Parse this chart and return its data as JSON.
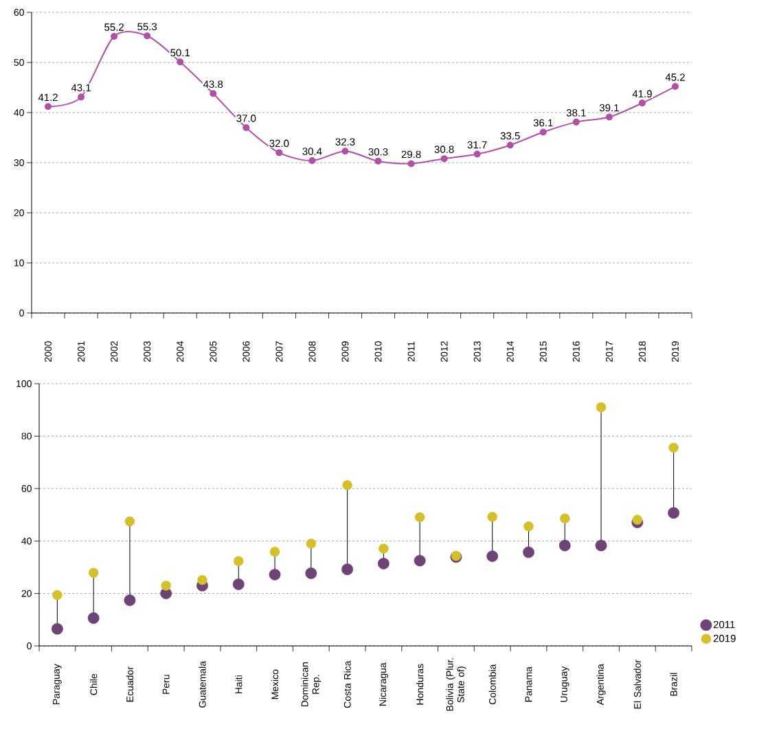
{
  "chart_data": [
    {
      "type": "line",
      "categories": [
        "2000",
        "2001",
        "2002",
        "2003",
        "2004",
        "2005",
        "2006",
        "2007",
        "2008",
        "2009",
        "2010",
        "2011",
        "2012",
        "2013",
        "2014",
        "2015",
        "2016",
        "2017",
        "2018",
        "2019"
      ],
      "values": [
        41.2,
        43.1,
        55.2,
        55.3,
        50.1,
        43.8,
        37.0,
        32.0,
        30.4,
        32.3,
        30.3,
        29.8,
        30.8,
        31.7,
        33.5,
        36.1,
        38.1,
        39.1,
        41.9,
        45.2
      ],
      "value_labels": [
        "41.2",
        "43.1",
        "55.2",
        "55.3",
        "50.1",
        "43.8",
        "37.0",
        "32.0",
        "30.4",
        "32.3",
        "30.3",
        "29.8",
        "30.8",
        "31.7",
        "33.5",
        "36.1",
        "38.1",
        "39.1",
        "41.9",
        "45.2"
      ],
      "color": "#b24fa6",
      "marker": "circle",
      "ylim": [
        0,
        60
      ],
      "yticks": [
        0,
        10,
        20,
        30,
        40,
        50,
        60
      ],
      "grid": "y"
    },
    {
      "type": "scatter",
      "categories": [
        "Paraguay",
        "Chile",
        "Ecuador",
        "Peru",
        "Guatemala",
        "Haiti",
        "Mexico",
        "Dominican Rep.",
        "Costa Rica",
        "Nicaragua",
        "Honduras",
        "Bolivia (Plur. State of)",
        "Colombia",
        "Panama",
        "Uruguay",
        "Argentina",
        "El Salvador",
        "Brazil"
      ],
      "series": [
        {
          "name": "2011",
          "color": "#6d4475",
          "values": [
            6.5,
            10.6,
            17.4,
            20.0,
            23.0,
            23.5,
            27.2,
            27.7,
            29.2,
            31.4,
            32.5,
            33.9,
            34.2,
            35.7,
            38.3,
            38.3,
            47.1,
            50.7
          ]
        },
        {
          "name": "2019",
          "color": "#d4c02a",
          "values": [
            19.4,
            27.9,
            47.5,
            23.0,
            25.1,
            32.3,
            35.9,
            39.0,
            61.3,
            37.1,
            49.1,
            34.3,
            49.2,
            45.6,
            48.6,
            91.0,
            48.1,
            75.6
          ]
        }
      ],
      "marker": "circle",
      "ylim": [
        0,
        100
      ],
      "yticks": [
        0,
        20,
        40,
        60,
        80,
        100
      ],
      "grid": "y",
      "legend": "bottom right"
    }
  ]
}
